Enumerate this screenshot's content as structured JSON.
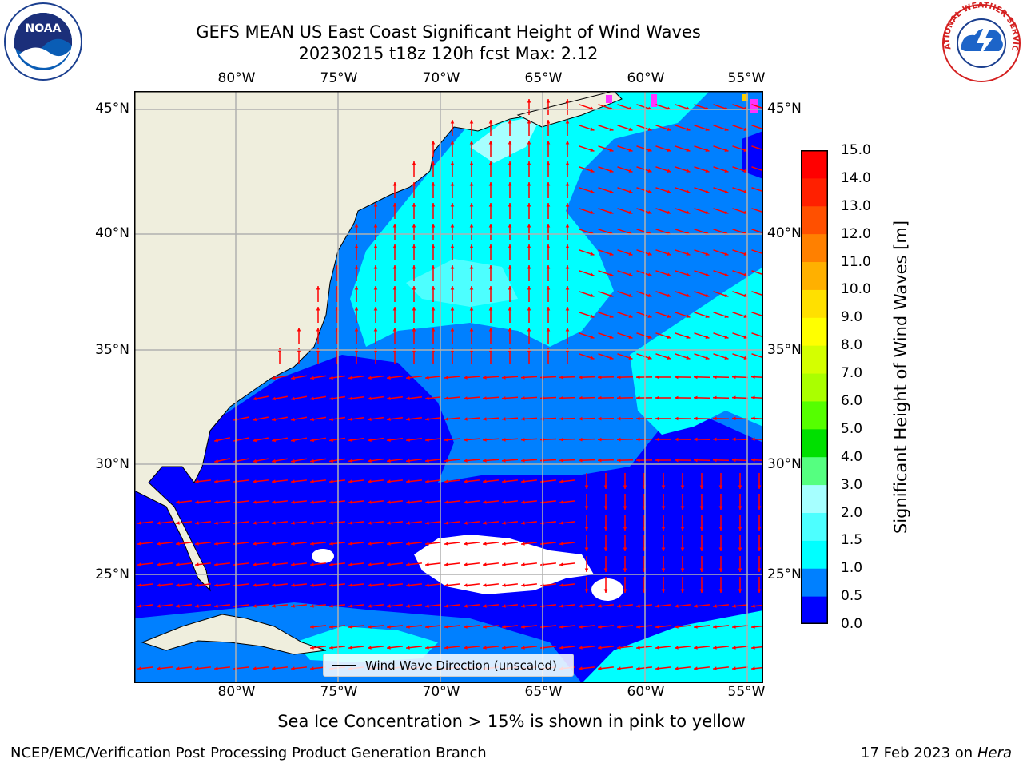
{
  "header": {
    "title_line1": "GEFS MEAN US East Coast Significant Height of Wind Waves",
    "title_line2": "20230215 t18z 120h fcst   Max: 2.12"
  },
  "logos": {
    "noaa_text": "NOAA",
    "nws_text": "NATIONAL WEATHER SERVICE"
  },
  "map": {
    "lon_ticks": [
      "80°W",
      "75°W",
      "70°W",
      "65°W",
      "60°W",
      "55°W"
    ],
    "lat_ticks": [
      "45°N",
      "40°N",
      "35°N",
      "30°N",
      "25°N"
    ],
    "legend_label": "Wind Wave Direction (unscaled)",
    "colors": {
      "land": "#efeedd",
      "vector": "#ff0000",
      "grid": "#b0b0b0"
    }
  },
  "colorbar": {
    "label": "Significant Height of Wind Waves [m]",
    "labels": [
      "15.0",
      "14.0",
      "13.0",
      "12.0",
      "11.0",
      "10.0",
      "9.0",
      "8.0",
      "7.0",
      "6.0",
      "5.0",
      "4.0",
      "3.0",
      "2.0",
      "1.5",
      "1.0",
      "0.5",
      "0.0"
    ],
    "colors": [
      "#0000ff",
      "#0080ff",
      "#00ffff",
      "#4dffff",
      "#a6ffff",
      "#55ff80",
      "#00e000",
      "#55ff00",
      "#aaff00",
      "#d4ff00",
      "#ffff00",
      "#ffe000",
      "#ffb000",
      "#ff8000",
      "#ff5000",
      "#ff2000",
      "#ff0000"
    ]
  },
  "footer": {
    "ice_note": "Sea Ice Concentration > 15% is shown in pink to yellow",
    "org": "NCEP/EMC/Verification Post Processing Product Generation Branch",
    "date": "17 Feb 2023 on",
    "machine": "Hera"
  }
}
